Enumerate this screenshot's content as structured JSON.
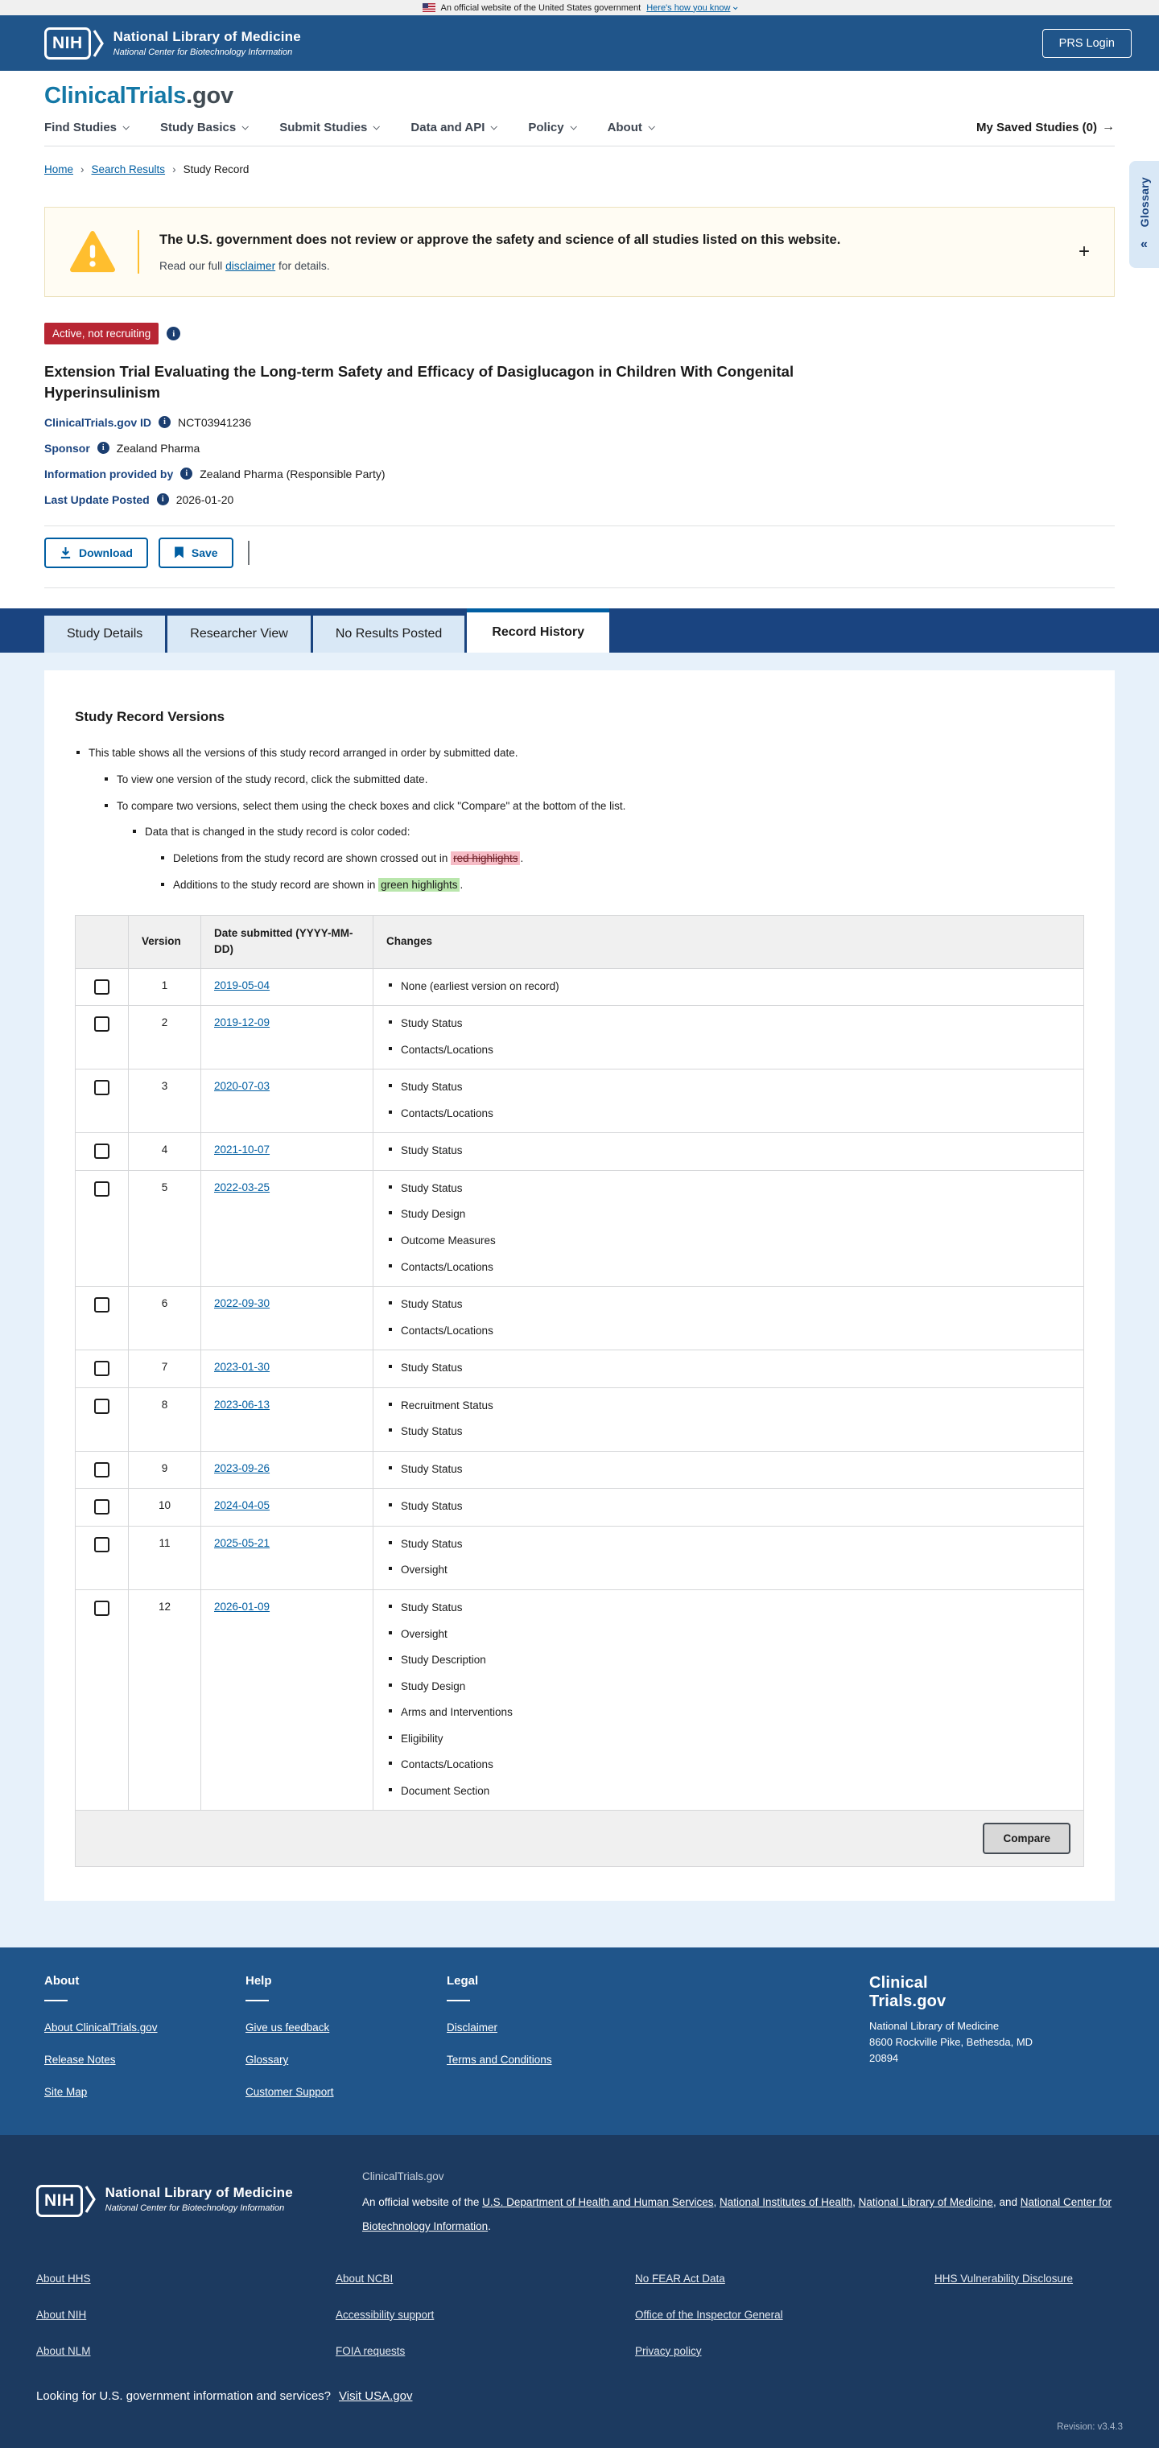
{
  "colors": {
    "header_blue": "#20558a",
    "tab_bar_blue": "#1a4480",
    "active_tab_accent": "#005ea2",
    "link_blue": "#005ea2",
    "status_red": "#b82633",
    "warning_gold": "#ffbe2e",
    "deletion_highlight": "#f6bcc6",
    "addition_highlight": "#b9e6ac",
    "section_bg": "#e7f1fa",
    "footer_dark": "#1c3a60"
  },
  "icons": {
    "info": "i",
    "separator": "›"
  },
  "banner": {
    "text": "An official website of the United States government",
    "link": "Here's how you know"
  },
  "nih_header": {
    "logo_acronym": "NIH",
    "org": "National Library of Medicine",
    "sub": "National Center for Biotechnology Information",
    "prs_login": "PRS Login"
  },
  "site": {
    "logo_primary": "ClinicalTrials",
    "logo_suffix": ".gov",
    "nav": [
      "Find Studies",
      "Study Basics",
      "Submit Studies",
      "Data and API",
      "Policy",
      "About"
    ],
    "saved_studies": "My Saved Studies (0)",
    "saved_arrow": "→"
  },
  "breadcrumb": {
    "separator": "›",
    "items": [
      "Home",
      "Search Results",
      "Study Record"
    ]
  },
  "glossary": {
    "label": "Glossary",
    "collapse_icon": "«"
  },
  "warning": {
    "heading": "The U.S. government does not review or approve the safety and science of all studies listed on this website.",
    "body_prefix": "Read our full ",
    "link": "disclaimer",
    "body_suffix": " for details.",
    "expand": "+"
  },
  "study": {
    "status": "Active, not recruiting",
    "title": "Extension Trial Evaluating the Long-term Safety and Efficacy of Dasiglucagon in Children With Congenital Hyperinsulinism",
    "fields": [
      {
        "label": "ClinicalTrials.gov ID",
        "value": "NCT03941236"
      },
      {
        "label": "Sponsor",
        "value": "Zealand Pharma"
      },
      {
        "label": "Information provided by",
        "value": "Zealand Pharma (Responsible Party)"
      },
      {
        "label": "Last Update Posted",
        "value": "2026-01-20"
      }
    ]
  },
  "actions": {
    "download": "Download",
    "save": "Save"
  },
  "tabs": [
    {
      "label": "Study Details",
      "active": false
    },
    {
      "label": "Researcher View",
      "active": false
    },
    {
      "label": "No Results Posted",
      "active": false
    },
    {
      "label": "Record History",
      "active": true
    }
  ],
  "record_history": {
    "heading": "Study Record Versions",
    "intro": {
      "l1": "This table shows all the versions of this study record arranged in order by submitted date.",
      "l2a": "To view one version of the study record, click the submitted date.",
      "l2b": "To compare two versions, select them using the check boxes and click \"Compare\" at the bottom of the list.",
      "l3": "Data that is changed in the study record is color coded:",
      "l4a_prefix": "Deletions from the study record are shown crossed out in ",
      "l4a_highlight": "red highlights",
      "l4a_suffix": ".",
      "l4b_prefix": "Additions to the study record are shown in ",
      "l4b_highlight": "green highlights",
      "l4b_suffix": "."
    },
    "table": {
      "headers": {
        "select": "",
        "version": "Version",
        "date": "Date submitted (YYYY-MM-DD)",
        "changes": "Changes"
      },
      "rows": [
        {
          "version": "1",
          "date": "2019-05-04",
          "changes": [
            "None (earliest version on record)"
          ]
        },
        {
          "version": "2",
          "date": "2019-12-09",
          "changes": [
            "Study Status",
            "Contacts/Locations"
          ]
        },
        {
          "version": "3",
          "date": "2020-07-03",
          "changes": [
            "Study Status",
            "Contacts/Locations"
          ]
        },
        {
          "version": "4",
          "date": "2021-10-07",
          "changes": [
            "Study Status"
          ]
        },
        {
          "version": "5",
          "date": "2022-03-25",
          "changes": [
            "Study Status",
            "Study Design",
            "Outcome Measures",
            "Contacts/Locations"
          ]
        },
        {
          "version": "6",
          "date": "2022-09-30",
          "changes": [
            "Study Status",
            "Contacts/Locations"
          ]
        },
        {
          "version": "7",
          "date": "2023-01-30",
          "changes": [
            "Study Status"
          ]
        },
        {
          "version": "8",
          "date": "2023-06-13",
          "changes": [
            "Recruitment Status",
            "Study Status"
          ]
        },
        {
          "version": "9",
          "date": "2023-09-26",
          "changes": [
            "Study Status"
          ]
        },
        {
          "version": "10",
          "date": "2024-04-05",
          "changes": [
            "Study Status"
          ]
        },
        {
          "version": "11",
          "date": "2025-05-21",
          "changes": [
            "Study Status",
            "Oversight"
          ]
        },
        {
          "version": "12",
          "date": "2026-01-09",
          "changes": [
            "Study Status",
            "Oversight",
            "Study Description",
            "Study Design",
            "Arms and Interventions",
            "Eligibility",
            "Contacts/Locations",
            "Document Section"
          ]
        }
      ],
      "compare_label": "Compare"
    }
  },
  "footer": {
    "columns": [
      {
        "heading": "About",
        "links": [
          "About ClinicalTrials.gov",
          "Release Notes",
          "Site Map"
        ]
      },
      {
        "heading": "Help",
        "links": [
          "Give us feedback",
          "Glossary",
          "Customer Support"
        ]
      },
      {
        "heading": "Legal",
        "links": [
          "Disclaimer",
          "Terms and Conditions"
        ]
      }
    ],
    "logo_line1": "Clinical",
    "logo_line2": "Trials.gov",
    "address": [
      "National Library of Medicine",
      "8600 Rockville Pike, Bethesda, MD",
      "20894"
    ]
  },
  "nlm_band": {
    "logo_acronym": "NIH",
    "org": "National Library of Medicine",
    "sub": "National Center for Biotechnology Information",
    "site_name": "ClinicalTrials.gov",
    "statement_prefix": "An official website of the ",
    "statement_links": [
      "U.S. Department of Health and Human Services",
      "National Institutes of Health",
      "National Library of Medicine",
      "National Center for Biotechnology Information"
    ],
    "statement_joiners": [
      ", ",
      ", ",
      ", and ",
      "."
    ],
    "link_columns": [
      [
        "About HHS",
        "About NIH",
        "About NLM"
      ],
      [
        "About NCBI",
        "Accessibility support",
        "FOIA requests"
      ],
      [
        "No FEAR Act Data",
        "Office of the Inspector General",
        "Privacy policy"
      ],
      [
        "HHS Vulnerability Disclosure"
      ]
    ],
    "usa_text": "Looking for U.S. government information and services?",
    "usa_link": "Visit USA.gov",
    "revision": "Revision: v3.4.3"
  }
}
